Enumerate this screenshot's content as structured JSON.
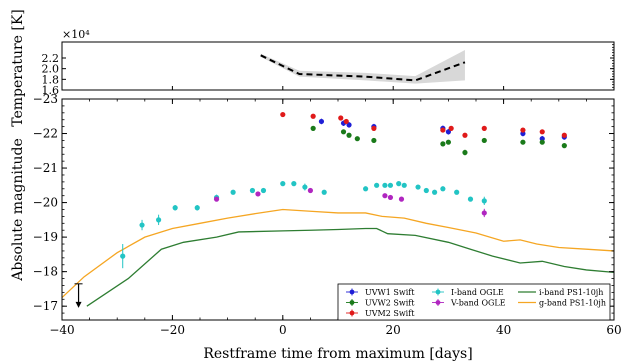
{
  "chart_data": [
    {
      "panel": "top",
      "type": "line",
      "ylabel": "Temperature [K]",
      "y_multiplier_label": "×10⁴",
      "xlim": [
        -40,
        60
      ],
      "ylim": [
        1.6,
        2.5
      ],
      "yticks": [
        "1.6",
        "1.8",
        "2.0",
        "2.2"
      ],
      "ytick_values": [
        1.6,
        1.8,
        2.0,
        2.2
      ],
      "series": [
        {
          "style": "dashed",
          "color": "#000000",
          "x": [
            -4,
            3,
            15,
            24,
            33
          ],
          "y": [
            2.25,
            1.9,
            1.85,
            1.78,
            2.12
          ]
        }
      ],
      "band": {
        "color": "#d8d8d8",
        "x": [
          -4,
          3,
          15,
          24,
          33
        ],
        "upper": [
          2.28,
          1.96,
          1.92,
          1.86,
          2.35
        ],
        "lower": [
          2.22,
          1.85,
          1.78,
          1.72,
          1.78
        ]
      },
      "grid": false
    },
    {
      "panel": "bottom",
      "type": "scatter",
      "xlabel": "Restframe time from maximum [days]",
      "ylabel": "Absolute magnitude",
      "xlim": [
        -40,
        60
      ],
      "ylim": [
        -16.6,
        -23
      ],
      "xticks": [
        "−40",
        "−20",
        "0",
        "20",
        "40",
        "60"
      ],
      "xtick_values": [
        -40,
        -20,
        0,
        20,
        40,
        60
      ],
      "yticks": [
        "−17",
        "−18",
        "−19",
        "−20",
        "−21",
        "−22",
        "−23"
      ],
      "ytick_values": [
        -17,
        -18,
        -19,
        -20,
        -21,
        -22,
        -23
      ],
      "grid": false,
      "legend_placement": "lower-right",
      "legend": [
        {
          "label": "UVW1 Swift",
          "color": "#1f1fd6",
          "kind": "marker"
        },
        {
          "label": "UVW2 Swift",
          "color": "#1a7a1a",
          "kind": "marker"
        },
        {
          "label": "UVM2 Swift",
          "color": "#e01a1a",
          "kind": "marker"
        },
        {
          "label": "I-band OGLE",
          "color": "#22c4c4",
          "kind": "marker"
        },
        {
          "label": "V-band OGLE",
          "color": "#b026c0",
          "kind": "marker"
        },
        {
          "label": "i-band PS1-10jh",
          "color": "#2e7d32",
          "kind": "line"
        },
        {
          "label": "g-band PS1-10jh",
          "color": "#f5a623",
          "kind": "line"
        }
      ],
      "upper_limit": {
        "x": -37,
        "y": -17.3
      },
      "point_series": [
        {
          "name": "UVW1 Swift",
          "color": "#1f1fd6",
          "points": [
            [
              7,
              -22.35,
              0.08
            ],
            [
              11,
              -22.3,
              0.08
            ],
            [
              12,
              -22.25,
              0.08
            ],
            [
              16.5,
              -22.2,
              0.08
            ],
            [
              29,
              -22.15,
              0.08
            ],
            [
              30,
              -22.05,
              0.08
            ],
            [
              43.5,
              -22.0,
              0.08
            ],
            [
              47,
              -21.85,
              0.08
            ],
            [
              51,
              -21.9,
              0.08
            ]
          ]
        },
        {
          "name": "UVW2 Swift",
          "color": "#1a7a1a",
          "points": [
            [
              5.5,
              -22.15,
              0.05
            ],
            [
              11,
              -22.05,
              0.05
            ],
            [
              12,
              -21.95,
              0.05
            ],
            [
              13.5,
              -21.85,
              0.05
            ],
            [
              16.5,
              -21.8,
              0.05
            ],
            [
              29,
              -21.7,
              0.05
            ],
            [
              30,
              -21.75,
              0.05
            ],
            [
              33,
              -21.45,
              0.08
            ],
            [
              36.5,
              -21.8,
              0.05
            ],
            [
              43.5,
              -21.75,
              0.05
            ],
            [
              47,
              -21.75,
              0.05
            ],
            [
              51,
              -21.65,
              0.05
            ]
          ]
        },
        {
          "name": "UVM2 Swift",
          "color": "#e01a1a",
          "points": [
            [
              0,
              -22.55,
              0.05
            ],
            [
              5.5,
              -22.5,
              0.05
            ],
            [
              10.5,
              -22.45,
              0.05
            ],
            [
              11.5,
              -22.35,
              0.05
            ],
            [
              16.5,
              -22.15,
              0.05
            ],
            [
              29,
              -22.1,
              0.05
            ],
            [
              30.5,
              -22.15,
              0.05
            ],
            [
              33,
              -21.95,
              0.05
            ],
            [
              36.5,
              -22.15,
              0.05
            ],
            [
              43.5,
              -22.1,
              0.05
            ],
            [
              47,
              -22.05,
              0.05
            ],
            [
              51,
              -21.95,
              0.05
            ]
          ]
        },
        {
          "name": "I-band OGLE",
          "color": "#22c4c4",
          "points": [
            [
              -29,
              -18.45,
              0.35
            ],
            [
              -25.5,
              -19.35,
              0.15
            ],
            [
              -22.5,
              -19.5,
              0.15
            ],
            [
              -19.5,
              -19.85,
              0.08
            ],
            [
              -15.5,
              -19.85,
              0.08
            ],
            [
              -12,
              -20.15,
              0.08
            ],
            [
              -9,
              -20.3,
              0.05
            ],
            [
              -5.5,
              -20.35,
              0.05
            ],
            [
              -3.5,
              -20.35,
              0.05
            ],
            [
              0,
              -20.55,
              0.05
            ],
            [
              2,
              -20.55,
              0.05
            ],
            [
              4,
              -20.45,
              0.1
            ],
            [
              7.5,
              -20.3,
              0.05
            ],
            [
              15,
              -20.4,
              0.05
            ],
            [
              17,
              -20.5,
              0.05
            ],
            [
              18.5,
              -20.5,
              0.05
            ],
            [
              19.5,
              -20.5,
              0.05
            ],
            [
              21,
              -20.55,
              0.05
            ],
            [
              22,
              -20.5,
              0.05
            ],
            [
              24.5,
              -20.45,
              0.05
            ],
            [
              26,
              -20.35,
              0.05
            ],
            [
              27.5,
              -20.3,
              0.05
            ],
            [
              29,
              -20.4,
              0.05
            ],
            [
              31.5,
              -20.3,
              0.05
            ],
            [
              34,
              -20.1,
              0.05
            ],
            [
              36.5,
              -20.05,
              0.12
            ]
          ]
        },
        {
          "name": "V-band OGLE",
          "color": "#b026c0",
          "points": [
            [
              -12,
              -20.1,
              0.05
            ],
            [
              -4.5,
              -20.25,
              0.05
            ],
            [
              5,
              -20.35,
              0.05
            ],
            [
              18.5,
              -20.2,
              0.05
            ],
            [
              19.5,
              -20.15,
              0.05
            ],
            [
              21.5,
              -20.1,
              0.05
            ],
            [
              36.5,
              -19.7,
              0.12
            ]
          ]
        }
      ],
      "line_series": [
        {
          "name": "i-band PS1-10jh",
          "color": "#2e7d32",
          "x": [
            -35.5,
            -28,
            -22,
            -18,
            -12,
            -8,
            0,
            5,
            10,
            15,
            17,
            19,
            24,
            30,
            34,
            38,
            43,
            47,
            51,
            55,
            60
          ],
          "y": [
            -17.0,
            -17.8,
            -18.65,
            -18.85,
            -19.0,
            -19.15,
            -19.18,
            -19.2,
            -19.22,
            -19.25,
            -19.25,
            -19.1,
            -19.05,
            -18.85,
            -18.65,
            -18.45,
            -18.25,
            -18.3,
            -18.15,
            -18.05,
            -17.98
          ]
        },
        {
          "name": "g-band PS1-10jh",
          "color": "#f5a623",
          "x": [
            -40,
            -36,
            -30,
            -25,
            -20,
            -15,
            -10,
            -5,
            0,
            5,
            10,
            15,
            18,
            22,
            26,
            30,
            35,
            40,
            43,
            46,
            50,
            55,
            60
          ],
          "y": [
            -17.25,
            -17.85,
            -18.55,
            -19.0,
            -19.25,
            -19.4,
            -19.55,
            -19.68,
            -19.8,
            -19.75,
            -19.7,
            -19.7,
            -19.6,
            -19.55,
            -19.4,
            -19.28,
            -19.12,
            -18.88,
            -18.92,
            -18.8,
            -18.7,
            -18.65,
            -18.6
          ]
        }
      ]
    }
  ]
}
